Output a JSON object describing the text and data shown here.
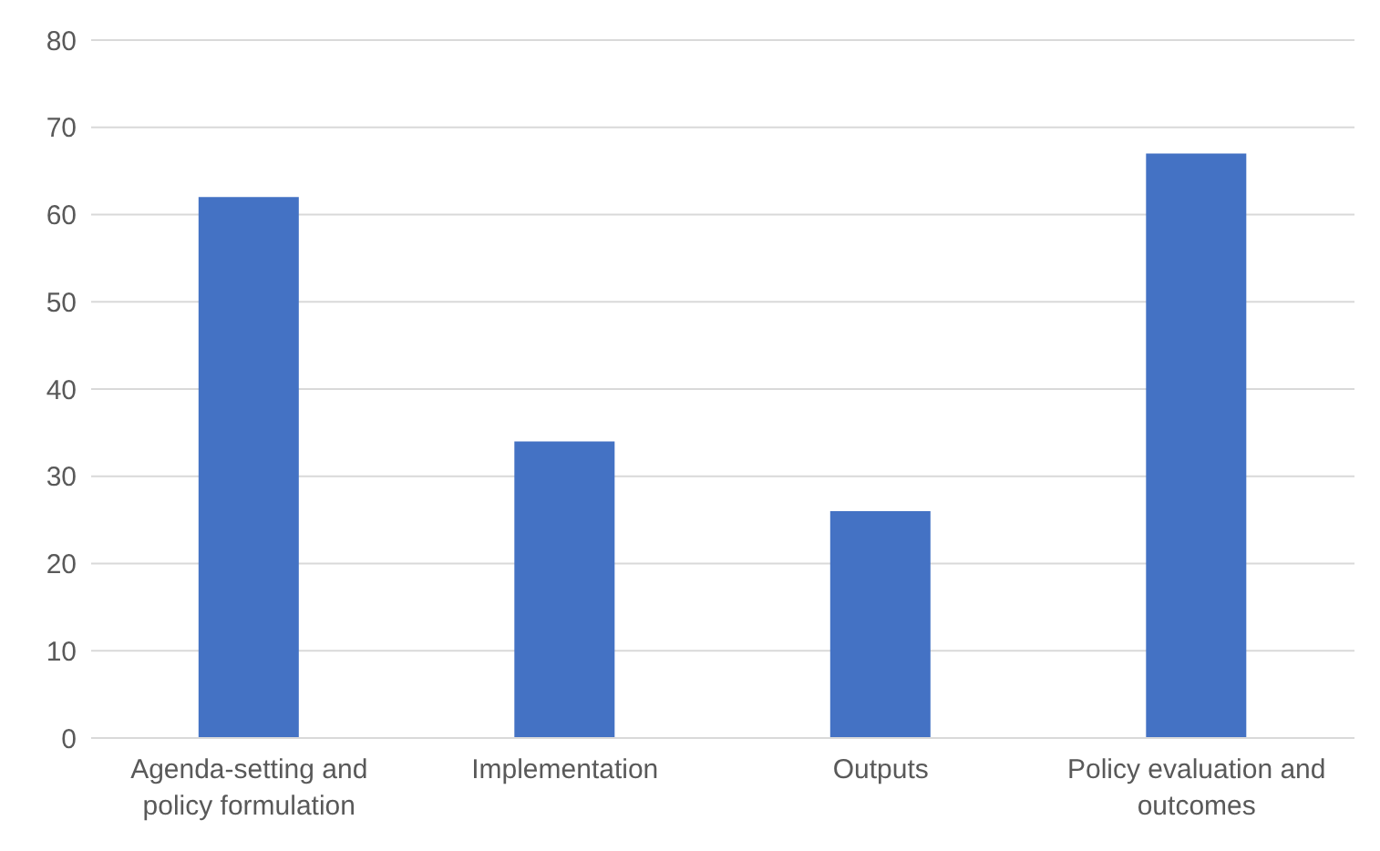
{
  "chart_data": {
    "type": "bar",
    "categories": [
      "Agenda-setting and policy formulation",
      "Implementation",
      "Outputs",
      "Policy evaluation and outcomes"
    ],
    "values": [
      62,
      34,
      26,
      67
    ],
    "color": "#4472c4",
    "ylim": [
      0,
      80
    ],
    "yticks": [
      0,
      10,
      20,
      30,
      40,
      50,
      60,
      70,
      80
    ],
    "grid": "y",
    "legend": false
  }
}
